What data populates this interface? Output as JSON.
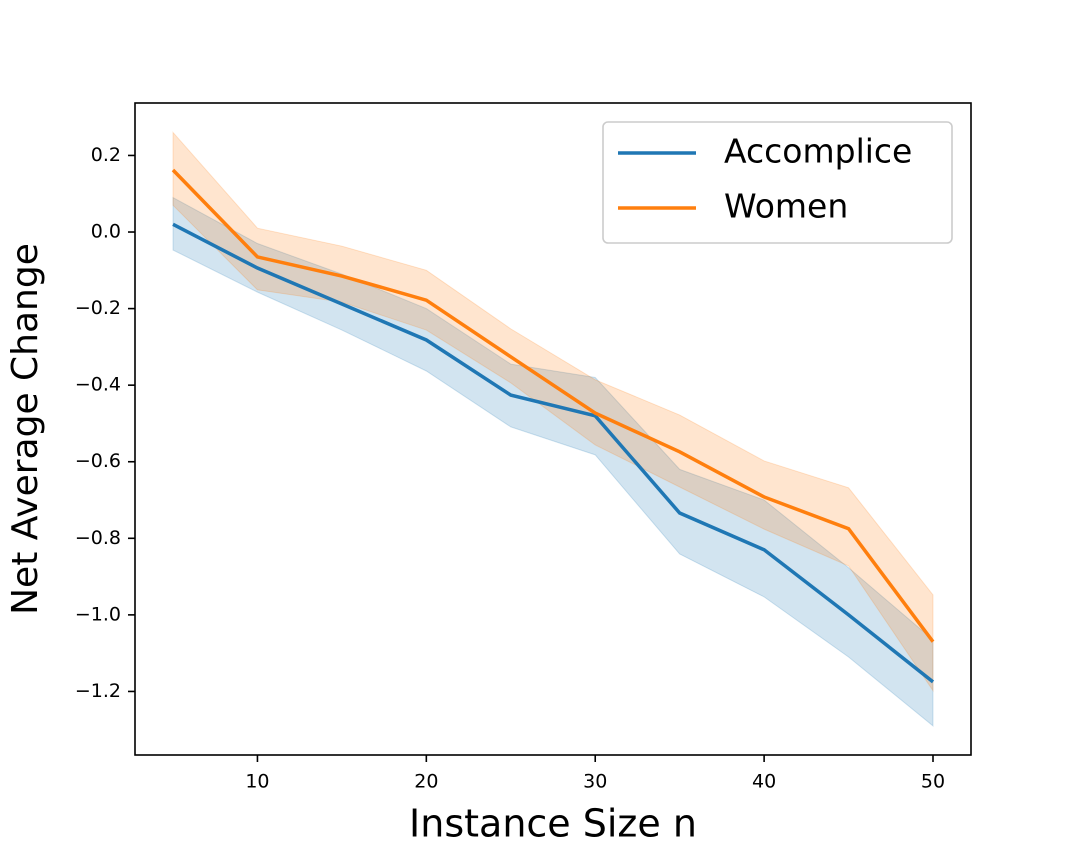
{
  "chart_data": {
    "type": "line",
    "xlabel": "Instance Size n",
    "ylabel": "Net Average Change",
    "x": [
      5,
      10,
      15,
      20,
      25,
      30,
      35,
      40,
      45,
      50
    ],
    "xlim": [
      2.75,
      52.25
    ],
    "xticks": [
      10,
      20,
      30,
      40,
      50
    ],
    "ylim": [
      -1.366,
      0.337
    ],
    "yticks": [
      {
        "value": 0.2,
        "label": "0.2"
      },
      {
        "value": 0.0,
        "label": "0.0"
      },
      {
        "value": -0.2,
        "label": "−0.2"
      },
      {
        "value": -0.4,
        "label": "−0.4"
      },
      {
        "value": -0.6,
        "label": "−0.6"
      },
      {
        "value": -0.8,
        "label": "−0.8"
      },
      {
        "value": -1.0,
        "label": "−1.0"
      },
      {
        "value": -1.2,
        "label": "−1.2"
      }
    ],
    "legend": "upper right",
    "series": [
      {
        "name": "Accomplice",
        "color": "#1f77b4",
        "values": [
          0.02,
          -0.094,
          -0.188,
          -0.282,
          -0.426,
          -0.48,
          -0.734,
          -0.83,
          -1.0,
          -1.175
        ],
        "lower": [
          -0.047,
          -0.157,
          -0.256,
          -0.363,
          -0.509,
          -0.582,
          -0.841,
          -0.953,
          -1.11,
          -1.29
        ],
        "upper": [
          0.09,
          -0.03,
          -0.11,
          -0.2,
          -0.345,
          -0.38,
          -0.62,
          -0.7,
          -0.877,
          -1.065
        ]
      },
      {
        "name": "Women",
        "color": "#ff7f0e",
        "values": [
          0.162,
          -0.065,
          -0.115,
          -0.178,
          -0.326,
          -0.473,
          -0.574,
          -0.692,
          -0.775,
          -1.07
        ],
        "lower": [
          0.07,
          -0.151,
          -0.183,
          -0.256,
          -0.394,
          -0.556,
          -0.666,
          -0.776,
          -0.872,
          -1.198
        ],
        "upper": [
          0.26,
          0.01,
          -0.037,
          -0.1,
          -0.253,
          -0.386,
          -0.478,
          -0.598,
          -0.668,
          -0.948
        ]
      }
    ]
  }
}
